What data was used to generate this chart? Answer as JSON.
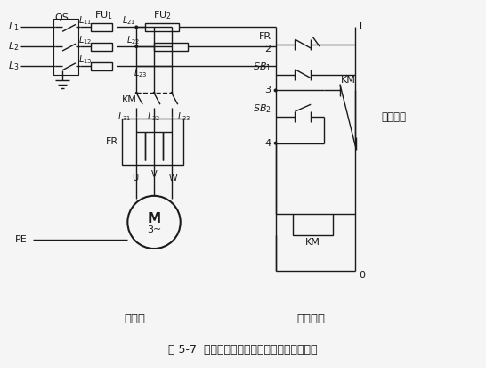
{
  "title": "图 5-7  有过载保护连续控制接触器控制原理图",
  "main_circuit_label": "主电路",
  "control_circuit_label": "控制电路",
  "bg_color": "#f5f5f5",
  "line_color": "#1a1a1a",
  "font_color": "#1a1a1a"
}
